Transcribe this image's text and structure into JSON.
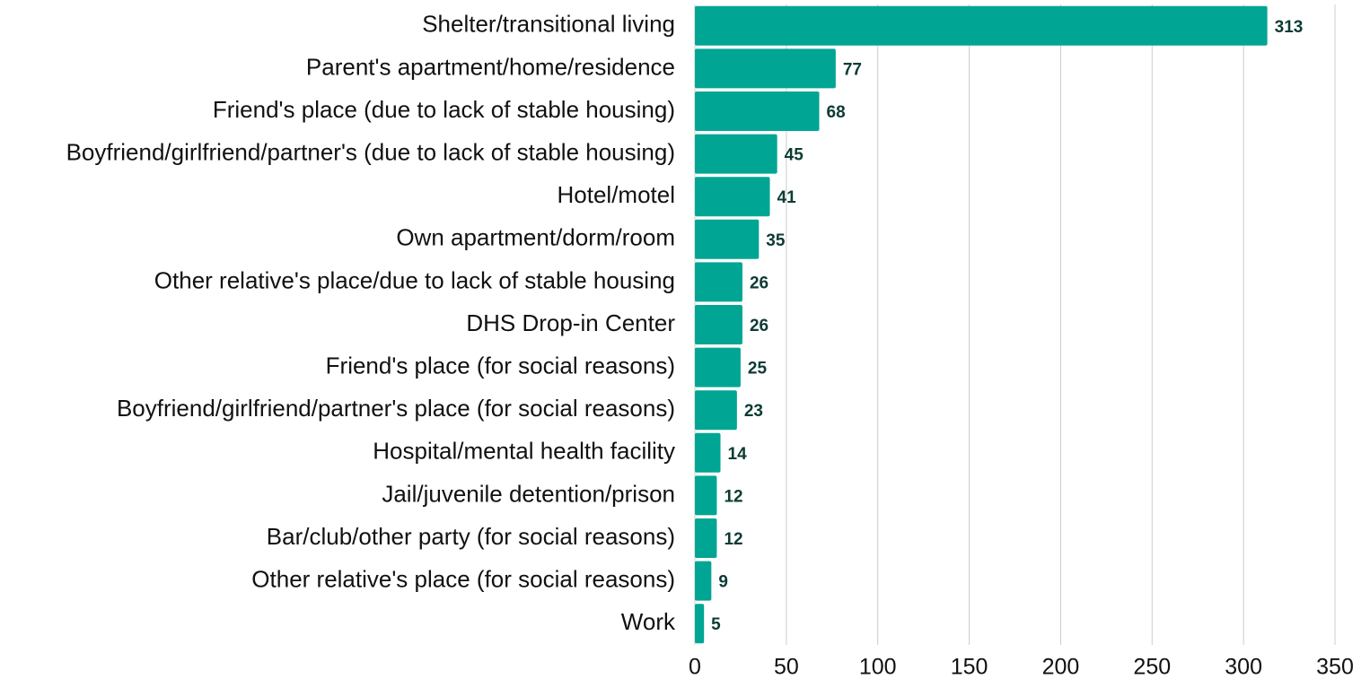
{
  "chart_data": {
    "type": "bar",
    "categories": [
      "Shelter/transitional living",
      "Parent's apartment/home/residence",
      "Friend's place (due to lack of stable housing)",
      "Boyfriend/girlfriend/partner's (due to lack of stable housing)",
      "Hotel/motel",
      "Own apartment/dorm/room",
      "Other relative's place/due to lack of stable housing",
      "DHS Drop-in Center",
      "Friend's place (for social reasons)",
      "Boyfriend/girlfriend/partner's place (for social reasons)",
      "Hospital/mental health facility",
      "Jail/juvenile detention/prison",
      "Bar/club/other party (for social reasons)",
      "Other relative's place (for social reasons)",
      "Work"
    ],
    "values": [
      313,
      77,
      68,
      45,
      41,
      35,
      26,
      26,
      25,
      23,
      14,
      12,
      12,
      9,
      5
    ],
    "color": "#00a693",
    "xlim": [
      0,
      350
    ],
    "xticks": [
      0,
      50,
      100,
      150,
      200,
      250,
      300,
      350
    ],
    "grid": true
  }
}
